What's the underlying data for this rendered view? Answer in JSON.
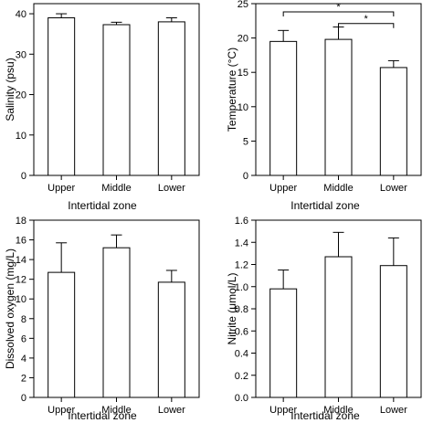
{
  "chart_data": [
    {
      "type": "bar",
      "categories": [
        "Upper",
        "Middle",
        "Lower"
      ],
      "values": [
        39.0,
        37.3,
        38.0
      ],
      "errors": [
        1.0,
        0.6,
        1.0
      ],
      "xlabel": "Intertidal zone",
      "ylabel": "Salinity (psu)",
      "ylim": [
        0,
        42.5
      ],
      "yticks": [
        "0",
        "10",
        "20",
        "30",
        "40"
      ],
      "ytick_values": [
        0,
        10,
        20,
        30,
        40
      ],
      "grid": false,
      "significance": []
    },
    {
      "type": "bar",
      "categories": [
        "Upper",
        "Middle",
        "Lower"
      ],
      "values": [
        19.5,
        19.8,
        15.7
      ],
      "errors": [
        1.6,
        1.8,
        1.0
      ],
      "xlabel": "Intertidal zone",
      "ylabel": "Temperature (°C)",
      "ylim": [
        0,
        25
      ],
      "yticks": [
        "0",
        "5",
        "10",
        "15",
        "20",
        "25"
      ],
      "ytick_values": [
        0,
        5,
        10,
        15,
        20,
        25
      ],
      "grid": false,
      "significance": [
        {
          "from": "Upper",
          "to": "Lower",
          "label": "*",
          "y": 23.8
        },
        {
          "from": "Middle",
          "to": "Lower",
          "label": "*",
          "y": 22.1
        }
      ]
    },
    {
      "type": "bar",
      "categories": [
        "Upper",
        "Middle",
        "Lower"
      ],
      "values": [
        12.7,
        15.2,
        11.7
      ],
      "errors": [
        3.0,
        1.3,
        1.2
      ],
      "xlabel": "Intertidal zone",
      "ylabel": "Dissolved oxygen (mg/L)",
      "ylim": [
        0,
        18
      ],
      "yticks": [
        "0",
        "2",
        "4",
        "6",
        "8",
        "10",
        "12",
        "14",
        "16",
        "18"
      ],
      "ytick_values": [
        0,
        2,
        4,
        6,
        8,
        10,
        12,
        14,
        16,
        18
      ],
      "grid": false,
      "significance": []
    },
    {
      "type": "bar",
      "categories": [
        "Upper",
        "Middle",
        "Lower"
      ],
      "values": [
        0.98,
        1.27,
        1.19
      ],
      "errors": [
        0.17,
        0.22,
        0.25
      ],
      "xlabel": "Intertidal zone",
      "ylabel": "Nitrite (μmol/L)",
      "ylim": [
        0,
        1.6
      ],
      "yticks": [
        "0.0",
        "0.2",
        "0.4",
        "0.6",
        "0.8",
        "1.0",
        "1.2",
        "1.4",
        "1.6"
      ],
      "ytick_values": [
        0,
        0.2,
        0.4,
        0.6,
        0.8,
        1.0,
        1.2,
        1.4,
        1.6
      ],
      "grid": false,
      "significance": []
    }
  ]
}
